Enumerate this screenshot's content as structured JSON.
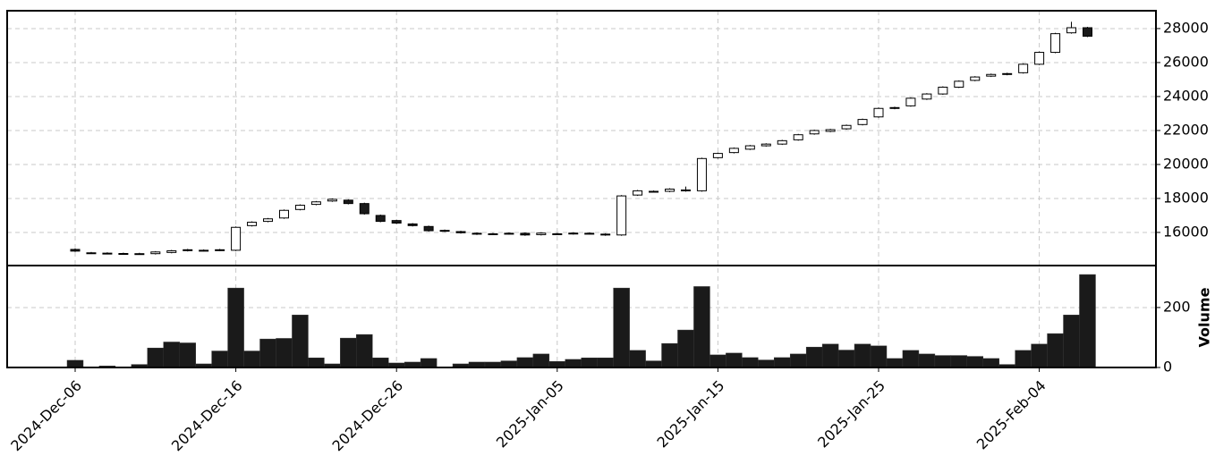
{
  "chart_data": {
    "type": "candlestick",
    "categories": [
      "2024-Dec-06",
      null,
      null,
      null,
      null,
      null,
      null,
      null,
      null,
      null,
      "2024-Dec-16",
      null,
      null,
      null,
      null,
      null,
      null,
      null,
      null,
      null,
      "2024-Dec-26",
      null,
      null,
      null,
      null,
      null,
      null,
      null,
      null,
      null,
      "2025-Jan-05",
      null,
      null,
      null,
      null,
      null,
      null,
      null,
      null,
      null,
      "2025-Jan-15",
      null,
      null,
      null,
      null,
      null,
      null,
      null,
      null,
      null,
      "2025-Jan-25",
      null,
      null,
      null,
      null,
      null,
      null,
      null,
      null,
      null,
      "2025-Feb-04",
      null,
      null,
      null
    ],
    "open": [
      15000,
      14800,
      14780,
      14760,
      14750,
      14750,
      14820,
      14980,
      14930,
      14950,
      14950,
      16400,
      16650,
      16850,
      17350,
      17650,
      17850,
      17900,
      17700,
      17000,
      16700,
      16500,
      16350,
      16120,
      16050,
      15950,
      15920,
      15950,
      15950,
      15870,
      15900,
      15920,
      15950,
      15900,
      15850,
      18200,
      18400,
      18420,
      18500,
      18450,
      20400,
      20700,
      20900,
      21100,
      21200,
      21450,
      21800,
      21950,
      22100,
      22350,
      22800,
      23300,
      23450,
      23850,
      24150,
      24550,
      24950,
      25200,
      25300,
      25400,
      25900,
      26600,
      27750,
      28050
    ],
    "high": [
      15050,
      14850,
      14830,
      14810,
      14800,
      14900,
      14970,
      15030,
      15000,
      15030,
      16350,
      16650,
      16850,
      17350,
      17650,
      17850,
      18000,
      17950,
      17750,
      17050,
      16750,
      16550,
      16400,
      16170,
      16100,
      16000,
      15970,
      16000,
      16000,
      16010,
      15970,
      16010,
      16000,
      15950,
      18200,
      18500,
      18470,
      18600,
      18700,
      20400,
      20700,
      21000,
      21150,
      21250,
      21450,
      21800,
      22050,
      22100,
      22350,
      22700,
      23350,
      23400,
      23950,
      24200,
      24600,
      24950,
      25200,
      25350,
      25400,
      25950,
      26650,
      27750,
      28400,
      28100
    ],
    "low": [
      14850,
      14750,
      14730,
      14710,
      14700,
      14700,
      14770,
      14880,
      14880,
      14900,
      14900,
      16350,
      16600,
      16800,
      17300,
      17600,
      17800,
      17650,
      17050,
      16600,
      16500,
      16350,
      16050,
      16030,
      15930,
      15850,
      15850,
      15870,
      15800,
      15820,
      15850,
      15870,
      15880,
      15800,
      15800,
      18150,
      18370,
      18370,
      18400,
      18400,
      20350,
      20650,
      20850,
      21050,
      21150,
      21400,
      21750,
      21900,
      22050,
      22300,
      22750,
      23250,
      23400,
      23800,
      24100,
      24500,
      24900,
      25150,
      25250,
      25350,
      25850,
      26550,
      27700,
      27500
    ],
    "close": [
      14900,
      14800,
      14780,
      14760,
      14750,
      14850,
      14920,
      14930,
      14950,
      14980,
      16300,
      16600,
      16800,
      17300,
      17600,
      17800,
      17950,
      17700,
      17100,
      16650,
      16550,
      16400,
      16100,
      16080,
      15980,
      15900,
      15900,
      15920,
      15850,
      15960,
      15920,
      15960,
      15930,
      15850,
      18150,
      18450,
      18420,
      18550,
      18450,
      20350,
      20650,
      20950,
      21100,
      21200,
      21400,
      21750,
      22000,
      22050,
      22300,
      22650,
      23300,
      23350,
      23900,
      24150,
      24550,
      24900,
      25150,
      25300,
      25350,
      25900,
      26600,
      27700,
      28050,
      27550
    ],
    "volume": [
      24,
      2,
      5,
      2,
      10,
      65,
      85,
      82,
      12,
      55,
      265,
      55,
      95,
      97,
      175,
      32,
      12,
      98,
      110,
      32,
      15,
      18,
      30,
      2,
      12,
      18,
      18,
      22,
      33,
      45,
      20,
      27,
      32,
      32,
      265,
      57,
      22,
      80,
      125,
      270,
      42,
      48,
      33,
      25,
      33,
      45,
      68,
      78,
      58,
      78,
      72,
      30,
      57,
      45,
      40,
      40,
      37,
      30,
      10,
      57,
      78,
      113,
      175,
      310
    ],
    "ylim": [
      14050,
      29050
    ],
    "yticks": [
      16000,
      18000,
      20000,
      22000,
      24000,
      26000,
      28000
    ],
    "volume_ylim": [
      0,
      340
    ],
    "volume_yticks": [
      0,
      200
    ],
    "volume_label": "Volume",
    "up_color": "#ffffff",
    "down_color": "#1a1a1a",
    "volume_color": "#1a1a1a",
    "grid": true
  }
}
